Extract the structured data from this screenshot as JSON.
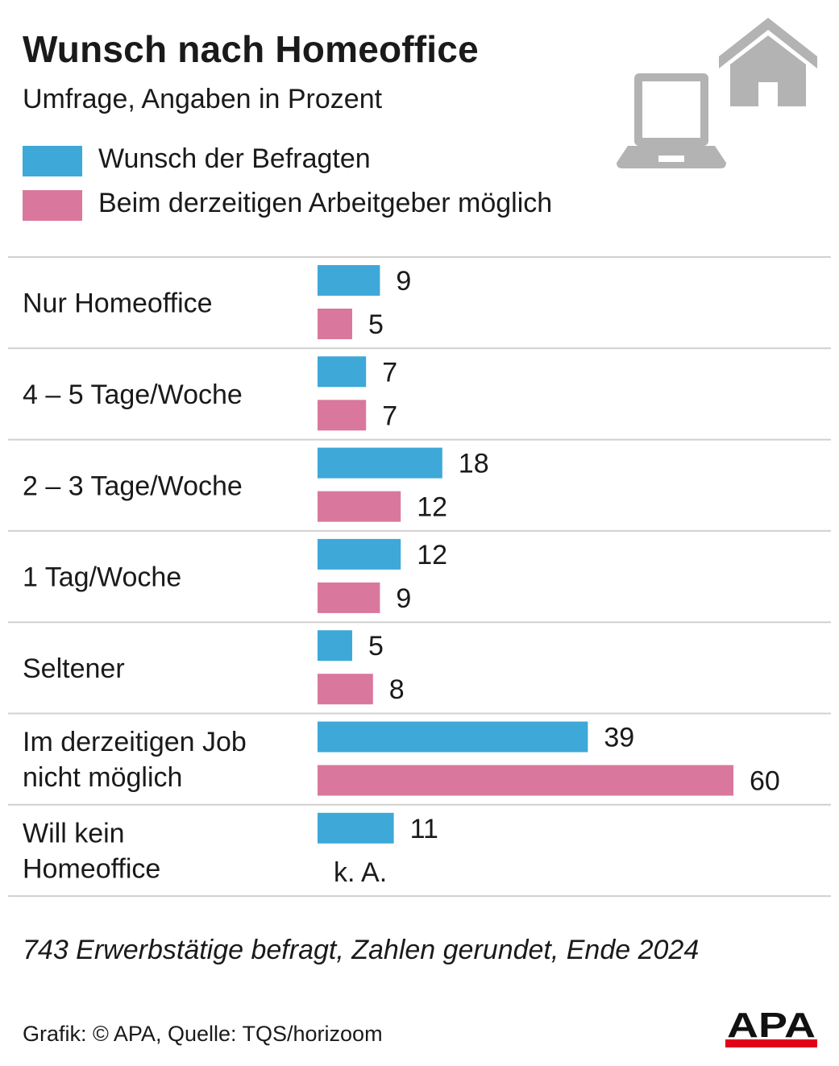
{
  "header": {
    "title": "Wunsch nach Homeoffice",
    "subtitle": "Umfrage, Angaben in Prozent"
  },
  "legend": [
    {
      "label": "Wunsch der Befragten",
      "color": "#3ea8d8"
    },
    {
      "label": "Beim derzeitigen Arbeitgeber möglich",
      "color": "#d9789c"
    }
  ],
  "icons": [
    "laptop-icon",
    "house-icon"
  ],
  "chart_data": {
    "type": "bar",
    "orientation": "horizontal",
    "categories": [
      [
        "Nur Homeoffice"
      ],
      [
        "4 – 5 Tage/Woche"
      ],
      [
        "2 – 3 Tage/Woche"
      ],
      [
        "1 Tag/Woche"
      ],
      [
        "Seltener"
      ],
      [
        "Im derzeitigen Job",
        "nicht möglich"
      ],
      [
        "Will kein",
        "Homeoffice"
      ]
    ],
    "series": [
      {
        "name": "Wunsch der Befragten",
        "color": "#3ea8d8",
        "values": [
          9,
          7,
          18,
          12,
          5,
          39,
          11
        ]
      },
      {
        "name": "Beim derzeitigen Arbeitgeber möglich",
        "color": "#d9789c",
        "values": [
          5,
          7,
          12,
          9,
          8,
          60,
          null
        ]
      }
    ],
    "missing_label": "k. A.",
    "grid": false,
    "legend_position": "top-left"
  },
  "footer": {
    "note": "743 Erwerbstätige befragt, Zahlen gerundet, Ende 2024",
    "source": "Grafik: © APA, Quelle: TQS/horizoom",
    "logo_text": "APA"
  }
}
